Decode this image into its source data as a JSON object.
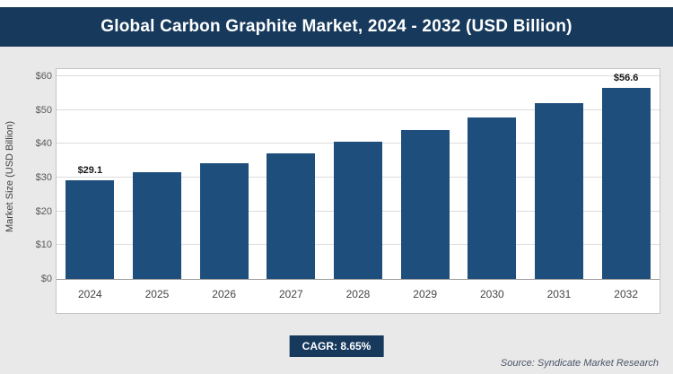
{
  "title": "Global Carbon Graphite Market, 2024 - 2032 (USD Billion)",
  "chart_data": {
    "type": "bar",
    "title": "Global Carbon Graphite Market, 2024 - 2032 (USD Billion)",
    "categories": [
      "2024",
      "2025",
      "2026",
      "2027",
      "2028",
      "2029",
      "2030",
      "2031",
      "2032"
    ],
    "values": [
      29.1,
      31.6,
      34.3,
      37.3,
      40.5,
      44.0,
      47.9,
      52.0,
      56.6
    ],
    "labels": [
      "$29.1",
      "",
      "",
      "",
      "",
      "",
      "",
      "",
      "$56.6"
    ],
    "xlabel": "",
    "ylabel": "Market Size (USD Billion)",
    "ylim": [
      0,
      60
    ],
    "ytick_step": 10,
    "ytick_prefix": "$",
    "grid": true,
    "legend_position": "none",
    "bar_color": "#1e4e7c"
  },
  "footer": {
    "cagr_label": "CAGR: 8.65%",
    "source": "Source: Syndicate Market Research"
  },
  "colors": {
    "banner": "#16395c",
    "panel_bg": "#e9e9e9",
    "bar": "#1e4e7c",
    "badge": "#16395c",
    "gridline": "#dcdcdc"
  }
}
